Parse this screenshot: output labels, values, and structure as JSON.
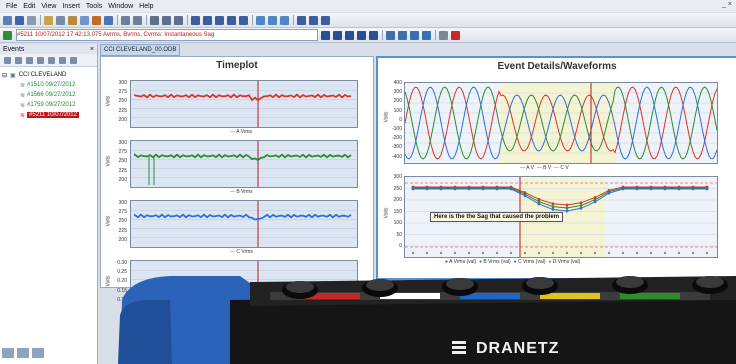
{
  "menu": {
    "items": [
      "File",
      "Edit",
      "View",
      "Insert",
      "Tools",
      "Window",
      "Help"
    ],
    "controls": "_ ×"
  },
  "toolbar": {
    "event_selector": "#5211 10/07/2012 17:42:13.075 Avrms, Bvrms, Cvrms: Instantaneous Sag"
  },
  "events_pane": {
    "title": "Events",
    "close": "×",
    "site": "CCI CLEVELAND",
    "items": [
      {
        "label": "#1510 09/27/2012",
        "selected": false
      },
      {
        "label": "#1566 09/27/2012",
        "selected": false
      },
      {
        "label": "#1759 09/27/2012",
        "selected": false
      },
      {
        "label": "#5211 10/07/2012",
        "selected": true
      }
    ]
  },
  "document": {
    "tab": "CCI CLEVELAND_00.ODB"
  },
  "timeplot": {
    "title": "Timeplot",
    "charts": [
      {
        "ylabel": "Volts",
        "ticks": [
          "300",
          "275",
          "250",
          "225",
          "200"
        ],
        "legend": "A Vrms",
        "color": "#d9342b"
      },
      {
        "ylabel": "Volts",
        "ticks": [
          "300",
          "275",
          "250",
          "225",
          "200"
        ],
        "legend": "B Vrms",
        "color": "#2e8b2e"
      },
      {
        "ylabel": "Volts",
        "ticks": [
          "300",
          "275",
          "250",
          "225",
          "200"
        ],
        "legend": "C Vrms",
        "color": "#2f6fd8"
      },
      {
        "ylabel": "Volts",
        "ticks": [
          "0.30",
          "0.25",
          "0.20",
          "0.15",
          "0.10"
        ],
        "legend": "",
        "color": "#555555"
      }
    ]
  },
  "event_details": {
    "title": "Event Details/Waveforms",
    "waveform": {
      "ylabel": "Volts",
      "ticks": [
        "400",
        "300",
        "200",
        "100",
        "0",
        "-100",
        "-200",
        "-300",
        "-400"
      ],
      "legend": [
        "A V",
        "B V",
        "C V"
      ]
    },
    "rms": {
      "ylabel": "Volts",
      "ticks": [
        "300",
        "250",
        "200",
        "150",
        "100",
        "50",
        "0"
      ],
      "legend": [
        "A Vrms (val)",
        "B Vrms (val)",
        "C Vrms (val)",
        "D Vrms (val)"
      ],
      "callout": "Here is the the Sag that caused the problem"
    }
  },
  "device": {
    "brand": "DRANETZ"
  }
}
